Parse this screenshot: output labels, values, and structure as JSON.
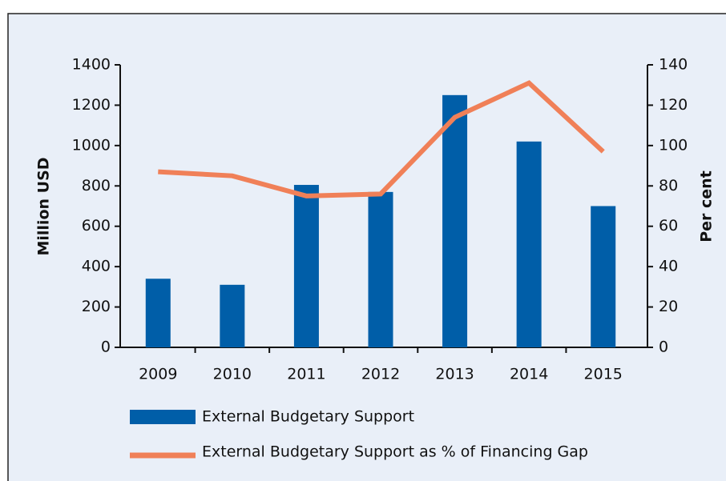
{
  "chart_data": {
    "type": "bar_line",
    "categories": [
      "2009",
      "2010",
      "2011",
      "2012",
      "2013",
      "2014",
      "2015"
    ],
    "series": [
      {
        "name": "External Budgetary Support",
        "type": "bar",
        "color": "#005ea8",
        "values": [
          340,
          310,
          805,
          770,
          1250,
          1020,
          700
        ]
      },
      {
        "name": "External Budgetary Support as % of Financing Gap",
        "type": "line",
        "axis": "y2",
        "color": "#f08058",
        "values": [
          87,
          85,
          75,
          76,
          114,
          131,
          97
        ]
      }
    ],
    "ylabel": "Million USD",
    "y2label": "Per cent",
    "ylim": [
      0,
      1400
    ],
    "yticks": [
      0,
      200,
      400,
      600,
      800,
      1000,
      1200,
      1400
    ],
    "y2lim": [
      0,
      140
    ],
    "y2ticks": [
      0,
      20,
      40,
      60,
      80,
      100,
      120,
      140
    ]
  }
}
